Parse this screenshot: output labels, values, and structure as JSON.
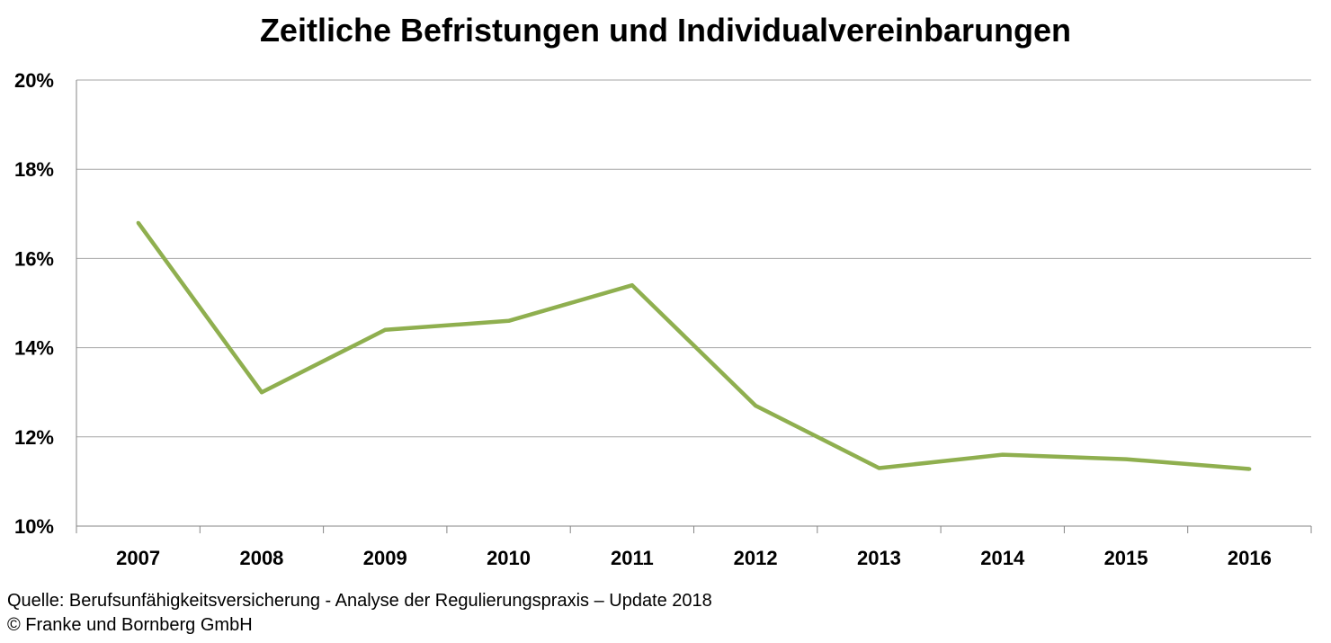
{
  "chart_data": {
    "type": "line",
    "title": "Zeitliche Befristungen und Individualvereinbarungen",
    "x": [
      "2007",
      "2008",
      "2009",
      "2010",
      "2011",
      "2012",
      "2013",
      "2014",
      "2015",
      "2016"
    ],
    "series": [
      {
        "values": [
          16.8,
          13.0,
          14.4,
          14.6,
          15.4,
          12.7,
          11.3,
          11.6,
          11.5,
          11.28
        ],
        "color": "#8faf4f"
      }
    ],
    "ylim": [
      10,
      20
    ],
    "yticks": [
      "10%",
      "12%",
      "14%",
      "16%",
      "18%",
      "20%"
    ],
    "ytick_values": [
      10,
      12,
      14,
      16,
      18,
      20
    ],
    "grid": true,
    "legend": "none"
  },
  "footer": {
    "source": "Quelle: Berufsunfähigkeitsversicherung - Analyse der Regulierungspraxis – Update 2018",
    "copyright": "© Franke und Bornberg GmbH"
  },
  "colors": {
    "gridline": "#a6a6a6",
    "axis": "#868686"
  }
}
